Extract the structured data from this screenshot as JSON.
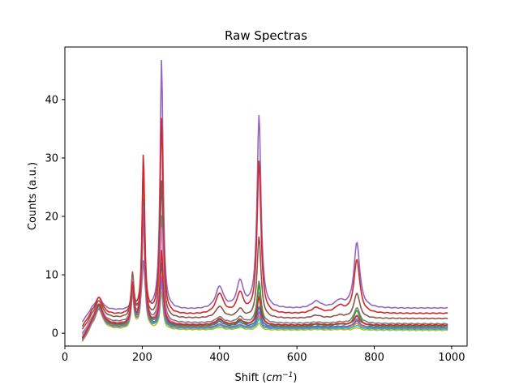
{
  "chart_data": {
    "type": "line",
    "title": "Raw Spectras",
    "xlabel_prefix": "Shift (",
    "xlabel_unit": "cm",
    "xlabel_exponent": "−1",
    "xlabel_suffix": ")",
    "ylabel": "Counts (a.u.)",
    "xlim": [
      0,
      1040
    ],
    "ylim": [
      -2.2,
      49.0
    ],
    "xticks": [
      0,
      200,
      400,
      600,
      800,
      1000
    ],
    "yticks": [
      0,
      10,
      20,
      30,
      40
    ],
    "grid": false,
    "legend": "none",
    "x_range_data": [
      45,
      990
    ],
    "peak_centers": [
      88,
      175,
      203,
      250,
      400,
      453,
      502,
      650,
      710,
      755
    ],
    "series_colors": [
      "#9467bd",
      "#d62728",
      "#8c564b",
      "#7f7f7f",
      "#e377c2",
      "#1f77b4",
      "#ff7f0e",
      "#2ca02c",
      "#bcbd22",
      "#17becf"
    ],
    "series": [
      {
        "color": "#9467bd",
        "baseline": 3.8,
        "peaks": {
          "88": 6.0,
          "175": 8.0,
          "203": 12.0,
          "250": 46.7,
          "400": 7.6,
          "453": 8.4,
          "502": 36.9,
          "650": 5.0,
          "710": 5.0,
          "755": 15.0
        },
        "end": 4.3
      },
      {
        "color": "#d62728",
        "baseline": 3.0,
        "peaks": {
          "88": 6.0,
          "175": 9.5,
          "203": 30.4,
          "250": 36.6,
          "400": 6.5,
          "453": 6.5,
          "502": 29.2,
          "650": 4.0,
          "710": 4.2,
          "755": 12.2
        },
        "end": 3.4
      },
      {
        "color": "#8c564b",
        "baseline": 2.5,
        "peaks": {
          "88": 5.5,
          "175": 10.0,
          "203": 25.0,
          "250": 26.0,
          "400": 4.5,
          "453": 4.0,
          "502": 16.5,
          "650": 3.0,
          "710": 3.0,
          "755": 6.8
        },
        "end": 2.5
      },
      {
        "color": "#7f7f7f",
        "baseline": 1.8,
        "peaks": {
          "88": 5.0,
          "175": 9.0,
          "203": 27.0,
          "250": 20.0,
          "400": 2.8,
          "453": 2.8,
          "502": 9.0,
          "650": 2.0,
          "710": 2.0,
          "755": 4.5
        },
        "end": 1.6
      },
      {
        "color": "#e377c2",
        "baseline": 1.5,
        "peaks": {
          "88": 5.0,
          "175": 8.5,
          "203": 24.0,
          "250": 18.0,
          "400": 2.5,
          "453": 2.3,
          "502": 7.0,
          "650": 1.7,
          "710": 1.7,
          "755": 3.2
        },
        "end": 1.3
      },
      {
        "color": "#1f77b4",
        "baseline": 1.2,
        "peaks": {
          "88": 4.8,
          "175": 8.0,
          "203": 28.0,
          "250": 12.0,
          "400": 2.0,
          "453": 1.9,
          "502": 4.5,
          "650": 1.3,
          "710": 1.3,
          "755": 2.2
        },
        "end": 1.0
      },
      {
        "color": "#ff7f0e",
        "baseline": 1.0,
        "peaks": {
          "88": 4.5,
          "175": 7.5,
          "203": 26.0,
          "250": 10.0,
          "400": 1.6,
          "453": 1.5,
          "502": 3.0,
          "650": 1.1,
          "710": 1.1,
          "755": 1.8
        },
        "end": 0.8
      },
      {
        "color": "#2ca02c",
        "baseline": 1.1,
        "peaks": {
          "88": 4.6,
          "175": 7.8,
          "203": 23.0,
          "250": 9.0,
          "400": 2.2,
          "453": 2.0,
          "502": 8.2,
          "650": 1.4,
          "710": 1.4,
          "755": 3.8
        },
        "end": 1.2
      },
      {
        "color": "#bcbd22",
        "baseline": 0.6,
        "peaks": {
          "88": 4.0,
          "175": 6.5,
          "203": 20.0,
          "250": 7.0,
          "400": 1.0,
          "453": 1.0,
          "502": 1.8,
          "650": 0.7,
          "710": 0.7,
          "755": 1.0
        },
        "end": 0.5
      },
      {
        "color": "#17becf",
        "baseline": 0.8,
        "peaks": {
          "88": 4.3,
          "175": 7.0,
          "203": 22.0,
          "250": 8.5,
          "400": 1.3,
          "453": 1.2,
          "502": 2.5,
          "650": 0.9,
          "710": 0.9,
          "755": 1.4
        },
        "end": 0.7
      },
      {
        "color": "#9467bd",
        "baseline": 0.9,
        "peaks": {
          "88": 4.2,
          "175": 7.2,
          "203": 21.0,
          "250": 9.5,
          "400": 1.5,
          "453": 1.4,
          "502": 3.5,
          "650": 1.0,
          "710": 1.0,
          "755": 2.4
        },
        "end": 0.9
      },
      {
        "color": "#d62728",
        "baseline": 1.3,
        "peaks": {
          "88": 4.9,
          "175": 8.2,
          "203": 29.0,
          "250": 14.0,
          "400": 2.3,
          "453": 2.2,
          "502": 6.0,
          "650": 1.5,
          "710": 1.5,
          "755": 2.8
        },
        "end": 1.4
      }
    ]
  }
}
